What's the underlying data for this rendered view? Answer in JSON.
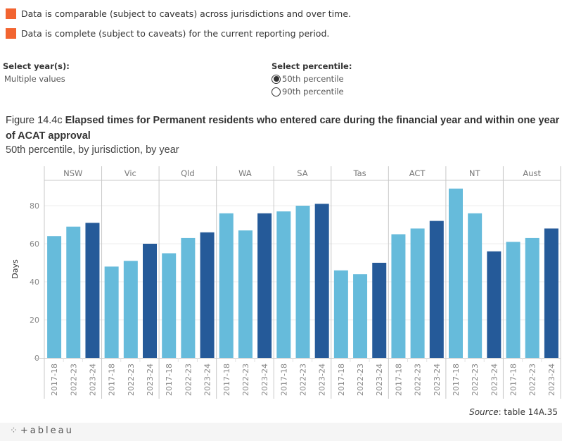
{
  "legend": [
    {
      "label": "Data is comparable (subject to caveats) across jurisdictions and over time.",
      "color": "#f26430"
    },
    {
      "label": "Data is complete (subject to caveats) for the current reporting period.",
      "color": "#f26430"
    }
  ],
  "filters": {
    "year": {
      "title": "Select year(s):",
      "value": "Multiple values"
    },
    "percentile": {
      "title": "Select percentile:",
      "options": [
        {
          "label": "50th percentile",
          "selected": true
        },
        {
          "label": "90th percentile",
          "selected": false
        }
      ]
    }
  },
  "figure": {
    "number": "Figure 14.4c",
    "title": "Elapsed times for Permanent residents who entered care during the financial year and within one year of ACAT approval",
    "subtitle": "50th percentile, by jurisdiction, by year"
  },
  "source": {
    "label": "Source",
    "text": ": table 14A.35"
  },
  "footer": {
    "brand": "+ableau",
    "icon": "tableau-logo-icon"
  },
  "chart_data": {
    "type": "bar",
    "title": "Elapsed times for Permanent residents who entered care during the financial year and within one year of ACAT approval",
    "subtitle": "50th percentile, by jurisdiction, by year",
    "xlabel": "",
    "ylabel": "Days",
    "ylim": [
      0,
      93
    ],
    "yticks": [
      0,
      20,
      40,
      60,
      80
    ],
    "grid": true,
    "panels": [
      "NSW",
      "Vic",
      "Qld",
      "WA",
      "SA",
      "Tas",
      "ACT",
      "NT",
      "Aust"
    ],
    "categories": [
      "2017-18",
      "2022-23",
      "2023-24"
    ],
    "colors": {
      "2017-18": "#66bbdb",
      "2022-23": "#66bbdb",
      "2023-24": "#255a99"
    },
    "series": [
      {
        "name": "NSW",
        "values": [
          64,
          69,
          71
        ]
      },
      {
        "name": "Vic",
        "values": [
          48,
          51,
          60
        ]
      },
      {
        "name": "Qld",
        "values": [
          55,
          63,
          66
        ]
      },
      {
        "name": "WA",
        "values": [
          76,
          67,
          76
        ]
      },
      {
        "name": "SA",
        "values": [
          77,
          80,
          81
        ]
      },
      {
        "name": "Tas",
        "values": [
          46,
          44,
          50
        ]
      },
      {
        "name": "ACT",
        "values": [
          65,
          68,
          72
        ]
      },
      {
        "name": "NT",
        "values": [
          89,
          76,
          56
        ]
      },
      {
        "name": "Aust",
        "values": [
          61,
          63,
          68
        ]
      }
    ]
  }
}
